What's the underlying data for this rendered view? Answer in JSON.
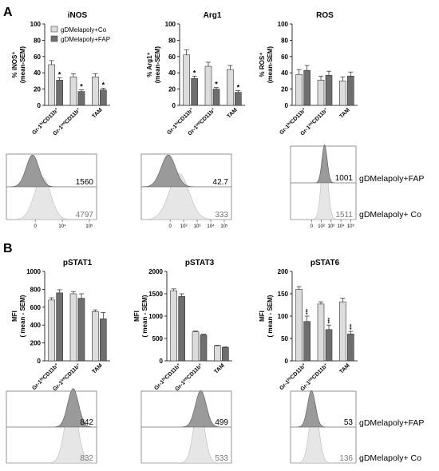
{
  "panels": {
    "a": "A",
    "b": "B"
  },
  "legend": {
    "co": "gDMelapoly+Co",
    "fap": "gDMelapoly+FAP"
  },
  "colors": {
    "co": "#dcdcdc",
    "fap": "#6e6e6e",
    "hist_co": "#e6e6e6",
    "hist_fap": "#9a9a9a"
  },
  "chart_data": [
    {
      "id": "inos",
      "type": "bar",
      "title": "iNOS",
      "ylabel": "% iNOS⁺ (mean-SEM)",
      "categories": [
        "Gr-1hiCD11b+",
        "Gr-1intCD11b+",
        "TAM"
      ],
      "ylim": [
        0,
        100
      ],
      "yticks": [
        0,
        20,
        40,
        60,
        80,
        100
      ],
      "series": [
        {
          "name": "gDMelapoly+Co",
          "values": [
            50,
            35,
            35
          ],
          "errors": [
            5,
            4,
            4
          ]
        },
        {
          "name": "gDMelapoly+FAP",
          "values": [
            31,
            17,
            19
          ],
          "errors": [
            3,
            2,
            2
          ]
        }
      ],
      "annotations": [
        "*",
        "*",
        "*"
      ]
    },
    {
      "id": "arg1",
      "type": "bar",
      "title": "Arg1",
      "ylabel": "% Arg1⁺ (mean-SEM)",
      "categories": [
        "Gr-1hiCD11b+",
        "Gr-1intCD11b+",
        "TAM"
      ],
      "ylim": [
        0,
        100
      ],
      "yticks": [
        0,
        20,
        40,
        60,
        80,
        100
      ],
      "series": [
        {
          "name": "gDMelapoly+Co",
          "values": [
            62,
            48,
            44
          ],
          "errors": [
            6,
            5,
            5
          ]
        },
        {
          "name": "gDMelapoly+FAP",
          "values": [
            33,
            20,
            16
          ],
          "errors": [
            3,
            2,
            2
          ]
        }
      ],
      "annotations": [
        "*",
        "*",
        "*"
      ]
    },
    {
      "id": "ros",
      "type": "bar",
      "title": "ROS",
      "ylabel": "% ROS⁺ (mean-SEM)",
      "categories": [
        "Gr-1hiCD11b+",
        "Gr-1intCD11b+",
        "TAM"
      ],
      "ylim": [
        0,
        100
      ],
      "yticks": [
        0,
        20,
        40,
        60,
        80,
        100
      ],
      "series": [
        {
          "name": "gDMelapoly+Co",
          "values": [
            38,
            31,
            30
          ],
          "errors": [
            6,
            5,
            5
          ]
        },
        {
          "name": "gDMelapoly+FAP",
          "values": [
            43,
            37,
            36
          ],
          "errors": [
            6,
            5,
            5
          ]
        }
      ],
      "annotations": [
        "",
        "",
        ""
      ]
    },
    {
      "id": "pstat1",
      "type": "bar",
      "title": "pSTAT1",
      "ylabel": "MFI ( mean - SEM)",
      "categories": [
        "Gr-1hiCD11b+",
        "Gr-1intCD11b+",
        "TAM"
      ],
      "ylim": [
        0,
        1000
      ],
      "yticks": [
        0,
        200,
        400,
        600,
        800,
        1000
      ],
      "series": [
        {
          "name": "gDMelapoly+Co",
          "values": [
            680,
            750,
            550
          ],
          "errors": [
            25,
            25,
            20
          ]
        },
        {
          "name": "gDMelapoly+FAP",
          "values": [
            760,
            700,
            470
          ],
          "errors": [
            35,
            50,
            70
          ]
        }
      ],
      "annotations": [
        "",
        "",
        ""
      ]
    },
    {
      "id": "pstat3",
      "type": "bar",
      "title": "pSTAT3",
      "ylabel": "MFI ( mean - SEM)",
      "categories": [
        "Gr-1hiCD11b+",
        "Gr-1intCD11b+",
        "TAM"
      ],
      "ylim": [
        0,
        2000
      ],
      "yticks": [
        0,
        500,
        1000,
        1500,
        2000
      ],
      "series": [
        {
          "name": "gDMelapoly+Co",
          "values": [
            1570,
            650,
            340
          ],
          "errors": [
            40,
            15,
            10
          ]
        },
        {
          "name": "gDMelapoly+FAP",
          "values": [
            1440,
            580,
            300
          ],
          "errors": [
            60,
            15,
            10
          ]
        }
      ],
      "annotations": [
        "",
        "",
        ""
      ]
    },
    {
      "id": "pstat6",
      "type": "bar",
      "title": "pSTAT6",
      "ylabel": "MFI ( mean - SEM)",
      "categories": [
        "Gr-1hiCD11b+",
        "Gr-1intCD11b+",
        "TAM"
      ],
      "ylim": [
        0,
        200
      ],
      "yticks": [
        0,
        50,
        100,
        150,
        200
      ],
      "series": [
        {
          "name": "gDMelapoly+Co",
          "values": [
            160,
            127,
            132
          ],
          "errors": [
            6,
            5,
            8
          ]
        },
        {
          "name": "gDMelapoly+FAP",
          "values": [
            88,
            70,
            60
          ],
          "errors": [
            12,
            10,
            6
          ]
        }
      ],
      "annotations": [
        "***",
        "***",
        "***"
      ]
    }
  ],
  "histograms": [
    {
      "id": "inos",
      "fap_value": "1560",
      "co_value": "4797",
      "ticks": [
        "0",
        "10⁴",
        "10⁵"
      ],
      "labels": []
    },
    {
      "id": "arg1",
      "fap_value": "42.7",
      "co_value": "333",
      "ticks": [
        "0",
        "10²",
        "10³",
        "10⁴",
        "10⁵"
      ],
      "labels": []
    },
    {
      "id": "ros",
      "fap_value": "1001",
      "co_value": "1511",
      "ticks": [
        "0",
        "10²",
        "10³",
        "10⁴",
        "10⁵"
      ],
      "labels": [
        "gDMelapoly+FAP",
        "gDMelapoly+ Co"
      ]
    },
    {
      "id": "pstat1",
      "fap_value": "842",
      "co_value": "832",
      "ticks": [],
      "labels": []
    },
    {
      "id": "pstat3",
      "fap_value": "499",
      "co_value": "533",
      "ticks": [],
      "labels": []
    },
    {
      "id": "pstat6",
      "fap_value": "53",
      "co_value": "136",
      "ticks": [],
      "labels": [
        "gDMelapoly+FAP",
        "gDMelapoly+ Co"
      ]
    }
  ]
}
